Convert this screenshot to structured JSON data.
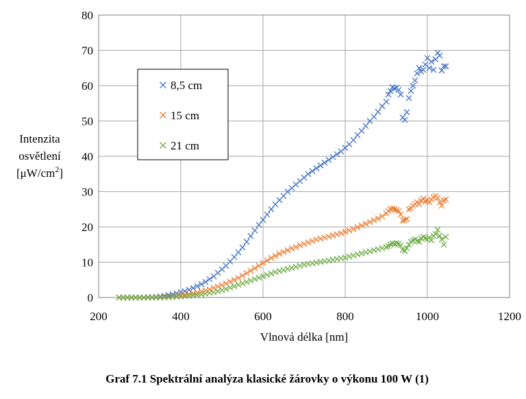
{
  "chart_data": {
    "type": "scatter",
    "caption": "Graf 7.1 Spektrální analýza klasické žárovky o výkonu 100 W (1)",
    "xlabel": "Vlnová délka [nm]",
    "ylabel_lines": [
      "Intenzita",
      "osvětlení",
      "[μW/cm",
      "2",
      "]"
    ],
    "xlim": [
      200,
      1200
    ],
    "ylim": [
      0,
      80
    ],
    "xticks": [
      200,
      400,
      600,
      800,
      1000,
      1200
    ],
    "yticks": [
      0,
      10,
      20,
      30,
      40,
      50,
      60,
      70,
      80
    ],
    "grid": true,
    "legend_position": "upper-left",
    "series": [
      {
        "name": "8,5 cm",
        "color": "#4472C4",
        "x": [
          250,
          260,
          270,
          280,
          290,
          300,
          310,
          320,
          330,
          340,
          350,
          360,
          370,
          380,
          390,
          400,
          410,
          420,
          430,
          440,
          450,
          460,
          470,
          480,
          490,
          500,
          510,
          520,
          530,
          540,
          550,
          560,
          570,
          580,
          590,
          600,
          610,
          620,
          630,
          640,
          650,
          660,
          670,
          680,
          690,
          700,
          710,
          720,
          730,
          740,
          750,
          760,
          770,
          780,
          790,
          800,
          810,
          820,
          830,
          840,
          850,
          860,
          870,
          880,
          890,
          900,
          905,
          910,
          915,
          920,
          925,
          930,
          935,
          940,
          945,
          950,
          955,
          960,
          965,
          970,
          975,
          980,
          985,
          990,
          995,
          1000,
          1005,
          1010,
          1015,
          1020,
          1025,
          1030,
          1035,
          1040,
          1045
        ],
        "y": [
          0,
          0,
          0,
          0,
          0,
          0,
          0,
          0.1,
          0.1,
          0.2,
          0.3,
          0.5,
          0.7,
          0.9,
          1.2,
          1.5,
          1.8,
          2.2,
          2.7,
          3.2,
          3.8,
          4.4,
          5.2,
          6,
          7,
          8,
          9,
          10.2,
          11.5,
          12.8,
          14.2,
          15.8,
          17.4,
          19,
          20.6,
          22,
          23.5,
          25,
          26.4,
          27.6,
          28.8,
          30,
          31,
          32,
          33,
          34,
          35,
          35.8,
          36.6,
          37.4,
          38.2,
          39,
          39.8,
          40.6,
          41.4,
          42.4,
          43.4,
          44.6,
          46,
          47.2,
          48.6,
          50,
          51.2,
          52.6,
          54.2,
          55.5,
          57.5,
          58.5,
          59.6,
          59.2,
          59.4,
          58.8,
          57.5,
          51,
          50.3,
          52.5,
          56.5,
          58.5,
          60,
          61.5,
          63.5,
          65,
          64,
          64.5,
          66,
          67.8,
          65,
          66.8,
          64.5,
          67.5,
          69.3,
          68.5,
          64.3,
          65.5,
          65.5
        ]
      },
      {
        "name": "15 cm",
        "color": "#ED7D31",
        "x": [
          250,
          260,
          270,
          280,
          290,
          300,
          310,
          320,
          330,
          340,
          350,
          360,
          370,
          380,
          390,
          400,
          410,
          420,
          430,
          440,
          450,
          460,
          470,
          480,
          490,
          500,
          510,
          520,
          530,
          540,
          550,
          560,
          570,
          580,
          590,
          600,
          610,
          620,
          630,
          640,
          650,
          660,
          670,
          680,
          690,
          700,
          710,
          720,
          730,
          740,
          750,
          760,
          770,
          780,
          790,
          800,
          810,
          820,
          830,
          840,
          850,
          860,
          870,
          880,
          890,
          900,
          905,
          910,
          915,
          920,
          925,
          930,
          935,
          940,
          945,
          950,
          955,
          960,
          965,
          970,
          975,
          980,
          985,
          990,
          995,
          1000,
          1005,
          1010,
          1015,
          1020,
          1025,
          1030,
          1035,
          1040,
          1045
        ],
        "y": [
          0,
          0,
          0,
          0,
          0,
          0,
          0,
          0,
          0,
          0.1,
          0.1,
          0.2,
          0.3,
          0.4,
          0.5,
          0.6,
          0.8,
          1,
          1.2,
          1.4,
          1.7,
          2,
          2.3,
          2.7,
          3.1,
          3.5,
          4,
          4.5,
          5,
          5.6,
          6.2,
          6.9,
          7.6,
          8.3,
          9,
          9.8,
          10.5,
          11.2,
          11.8,
          12.4,
          12.9,
          13.4,
          13.9,
          14.3,
          14.8,
          15.2,
          15.6,
          16,
          16.4,
          16.7,
          17,
          17.3,
          17.6,
          17.9,
          18.2,
          18.6,
          19,
          19.4,
          19.9,
          20.4,
          20.9,
          21.4,
          21.9,
          22.4,
          23,
          23.8,
          24.5,
          25,
          25.2,
          25,
          24.8,
          24.5,
          23.5,
          21.8,
          22,
          22.2,
          25,
          25.3,
          26,
          26.5,
          27,
          26.5,
          27.5,
          28,
          27.2,
          27.5,
          27,
          27.8,
          28.4,
          28.8,
          28.2,
          27,
          26,
          27.5,
          27.8
        ]
      },
      {
        "name": "21 cm",
        "color": "#70AD47",
        "x": [
          250,
          260,
          270,
          280,
          290,
          300,
          310,
          320,
          330,
          340,
          350,
          360,
          370,
          380,
          390,
          400,
          410,
          420,
          430,
          440,
          450,
          460,
          470,
          480,
          490,
          500,
          510,
          520,
          530,
          540,
          550,
          560,
          570,
          580,
          590,
          600,
          610,
          620,
          630,
          640,
          650,
          660,
          670,
          680,
          690,
          700,
          710,
          720,
          730,
          740,
          750,
          760,
          770,
          780,
          790,
          800,
          810,
          820,
          830,
          840,
          850,
          860,
          870,
          880,
          890,
          900,
          905,
          910,
          915,
          920,
          925,
          930,
          935,
          940,
          945,
          950,
          955,
          960,
          965,
          970,
          975,
          980,
          985,
          990,
          995,
          1000,
          1005,
          1010,
          1015,
          1020,
          1025,
          1030,
          1035,
          1040,
          1045
        ],
        "y": [
          0,
          0,
          0,
          0,
          0,
          0,
          0,
          0,
          0,
          0,
          0,
          0.1,
          0.1,
          0.2,
          0.2,
          0.3,
          0.4,
          0.5,
          0.6,
          0.7,
          0.9,
          1.1,
          1.3,
          1.5,
          1.8,
          2.1,
          2.4,
          2.8,
          3.2,
          3.6,
          4,
          4.4,
          4.8,
          5.2,
          5.6,
          6,
          6.4,
          6.8,
          7.2,
          7.5,
          7.8,
          8.1,
          8.4,
          8.7,
          9,
          9.3,
          9.5,
          9.7,
          9.9,
          10.1,
          10.3,
          10.5,
          10.7,
          10.9,
          11.1,
          11.3,
          11.6,
          11.9,
          12.2,
          12.5,
          12.8,
          13.1,
          13.4,
          13.7,
          14,
          14.3,
          14.6,
          15,
          15.3,
          15.2,
          15.4,
          15.2,
          14.8,
          13.5,
          13.2,
          14,
          15,
          15.8,
          16.2,
          16.5,
          16,
          15.8,
          16.8,
          17.2,
          16.8,
          16.5,
          17,
          16.2,
          17.5,
          18,
          19.2,
          17.5,
          16.5,
          15,
          17.2
        ]
      }
    ]
  }
}
